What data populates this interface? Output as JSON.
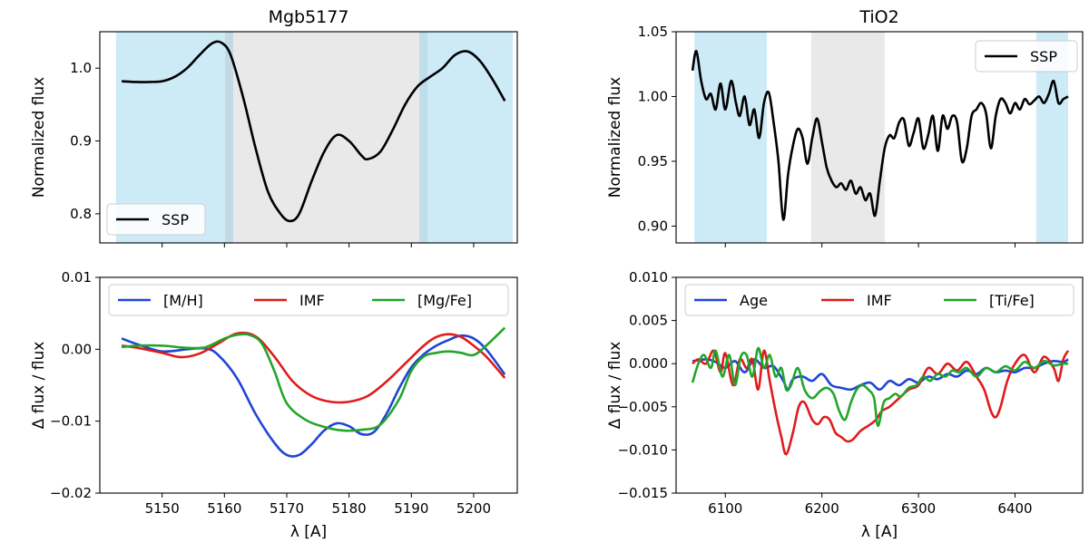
{
  "chart_data": [
    {
      "type": "line",
      "title": "Mgb5177",
      "xlabel": "",
      "ylabel": "Normalized flux",
      "xlim": [
        5140,
        5207
      ],
      "ylim": [
        0.76,
        1.05
      ],
      "xticks": [
        5150,
        5160,
        5170,
        5180,
        5190,
        5200
      ],
      "xtick_labels": [
        "",
        "",
        "",
        "",
        "",
        ""
      ],
      "yticks": [
        0.8,
        0.9,
        1.0
      ],
      "ytick_labels": [
        "0.8",
        "0.9",
        "1.0"
      ],
      "legend_position": "lower-left",
      "bands": [
        {
          "kind": "blue",
          "x0": 5142.6,
          "x1": 5161.4
        },
        {
          "kind": "grey",
          "x0": 5160.1,
          "x1": 5192.6
        },
        {
          "kind": "blue",
          "x0": 5191.3,
          "x1": 5206.3
        }
      ],
      "series": [
        {
          "name": "SSP",
          "color": "#000000",
          "x": [
            5143.5,
            5146,
            5148,
            5150,
            5152,
            5154,
            5156,
            5158,
            5159.5,
            5161,
            5163,
            5165,
            5167,
            5169,
            5170.5,
            5172,
            5174,
            5176,
            5178,
            5180,
            5182,
            5183,
            5185,
            5187,
            5189,
            5191,
            5193,
            5195,
            5197,
            5199,
            5201,
            5203,
            5205
          ],
          "y": [
            0.982,
            0.981,
            0.981,
            0.982,
            0.988,
            1.0,
            1.018,
            1.034,
            1.035,
            1.018,
            0.96,
            0.89,
            0.83,
            0.8,
            0.79,
            0.8,
            0.845,
            0.885,
            0.908,
            0.9,
            0.88,
            0.875,
            0.885,
            0.915,
            0.95,
            0.975,
            0.988,
            1.0,
            1.018,
            1.023,
            1.01,
            0.985,
            0.955
          ]
        }
      ]
    },
    {
      "type": "line",
      "title": "",
      "xlabel": "λ [A]",
      "ylabel": "Δ flux / flux",
      "xlim": [
        5140,
        5207
      ],
      "ylim": [
        -0.02,
        0.01
      ],
      "xticks": [
        5150,
        5160,
        5170,
        5180,
        5190,
        5200
      ],
      "xtick_labels": [
        "5150",
        "5160",
        "5170",
        "5180",
        "5190",
        "5200"
      ],
      "yticks": [
        -0.02,
        -0.01,
        0.0,
        0.01
      ],
      "ytick_labels": [
        "−0.02",
        "−0.01",
        "0.00",
        "0.01"
      ],
      "legend_position": "top",
      "series": [
        {
          "name": "[M/H]",
          "color": "#1f45d8",
          "x": [
            5143.5,
            5146,
            5150,
            5154,
            5157,
            5159,
            5162,
            5165,
            5168,
            5170,
            5172,
            5174,
            5176,
            5178,
            5180,
            5182,
            5184,
            5186,
            5188,
            5190,
            5192,
            5194,
            5196,
            5198,
            5200,
            5202,
            5205
          ],
          "y": [
            0.0015,
            0.0007,
            -0.0003,
            0.0,
            0.0001,
            -0.0008,
            -0.004,
            -0.009,
            -0.013,
            -0.0147,
            -0.0147,
            -0.0132,
            -0.0113,
            -0.0103,
            -0.0107,
            -0.0118,
            -0.0115,
            -0.009,
            -0.0055,
            -0.0025,
            -0.0007,
            0.0005,
            0.0013,
            0.0019,
            0.0015,
            0.0,
            -0.0035
          ]
        },
        {
          "name": "IMF",
          "color": "#e01b1b",
          "x": [
            5143.5,
            5146,
            5150,
            5153,
            5156,
            5159,
            5162,
            5165,
            5168,
            5171,
            5174,
            5177,
            5180,
            5183,
            5186,
            5189,
            5192,
            5194,
            5196,
            5198,
            5200,
            5202,
            5205
          ],
          "y": [
            0.0005,
            0.0002,
            -0.0005,
            -0.0011,
            -0.0006,
            0.0008,
            0.0022,
            0.0018,
            -0.001,
            -0.0045,
            -0.0065,
            -0.0073,
            -0.0073,
            -0.0065,
            -0.0045,
            -0.002,
            0.0005,
            0.0017,
            0.0021,
            0.0017,
            0.0005,
            -0.001,
            -0.004
          ]
        },
        {
          "name": "[Mg/Fe]",
          "color": "#22a52a",
          "x": [
            5143.5,
            5146,
            5150,
            5154,
            5157,
            5160,
            5162,
            5164,
            5166,
            5168,
            5170,
            5173,
            5176,
            5179,
            5182,
            5185,
            5188,
            5190,
            5192,
            5194,
            5196,
            5198,
            5200,
            5202,
            5205
          ],
          "y": [
            0.0003,
            0.0005,
            0.0005,
            0.0002,
            0.0003,
            0.0015,
            0.002,
            0.002,
            0.0008,
            -0.003,
            -0.0075,
            -0.0098,
            -0.0108,
            -0.0113,
            -0.0112,
            -0.0105,
            -0.007,
            -0.003,
            -0.001,
            -0.0005,
            -0.0003,
            -0.0005,
            -0.0008,
            0.0005,
            0.003
          ]
        }
      ]
    },
    {
      "type": "line",
      "title": "TiO2",
      "xlabel": "",
      "ylabel": "Normalized flux",
      "xlim": [
        6049,
        6470
      ],
      "ylim": [
        0.887,
        1.05
      ],
      "xticks": [
        6100,
        6200,
        6300,
        6400
      ],
      "xtick_labels": [
        "",
        "",
        "",
        ""
      ],
      "yticks": [
        0.9,
        0.95,
        1.0,
        1.05
      ],
      "ytick_labels": [
        "0.90",
        "0.95",
        "1.00",
        "1.05"
      ],
      "legend_position": "top-right",
      "bands": [
        {
          "kind": "blue",
          "x0": 6068,
          "x1": 6143
        },
        {
          "kind": "grey",
          "x0": 6189,
          "x1": 6265
        },
        {
          "kind": "blue",
          "x0": 6422,
          "x1": 6455
        }
      ],
      "series": [
        {
          "name": "SSP",
          "color": "#000000",
          "x": [
            6066,
            6070,
            6075,
            6080,
            6085,
            6090,
            6095,
            6100,
            6106,
            6111,
            6115,
            6120,
            6125,
            6130,
            6135,
            6140,
            6145,
            6150,
            6155,
            6160,
            6165,
            6170,
            6175,
            6180,
            6185,
            6190,
            6195,
            6200,
            6205,
            6210,
            6215,
            6220,
            6225,
            6230,
            6235,
            6240,
            6245,
            6250,
            6255,
            6260,
            6265,
            6270,
            6275,
            6280,
            6285,
            6290,
            6295,
            6300,
            6305,
            6310,
            6315,
            6320,
            6325,
            6330,
            6335,
            6340,
            6345,
            6350,
            6355,
            6360,
            6365,
            6370,
            6375,
            6380,
            6385,
            6390,
            6395,
            6400,
            6405,
            6410,
            6415,
            6420,
            6425,
            6430,
            6435,
            6440,
            6445,
            6450,
            6455
          ],
          "y": [
            1.02,
            1.035,
            1.012,
            0.998,
            1.002,
            0.99,
            1.01,
            0.99,
            1.012,
            0.995,
            0.985,
            1.0,
            0.978,
            0.99,
            0.968,
            0.995,
            1.003,
            0.98,
            0.95,
            0.905,
            0.94,
            0.962,
            0.975,
            0.968,
            0.948,
            0.968,
            0.983,
            0.965,
            0.945,
            0.935,
            0.93,
            0.933,
            0.928,
            0.935,
            0.925,
            0.93,
            0.92,
            0.925,
            0.908,
            0.935,
            0.96,
            0.97,
            0.968,
            0.98,
            0.982,
            0.962,
            0.972,
            0.983,
            0.96,
            0.97,
            0.985,
            0.958,
            0.985,
            0.975,
            0.985,
            0.98,
            0.95,
            0.96,
            0.985,
            0.99,
            0.995,
            0.987,
            0.96,
            0.985,
            0.998,
            0.995,
            0.987,
            0.995,
            0.99,
            0.998,
            0.994,
            0.997,
            1.0,
            0.995,
            1.002,
            1.012,
            0.995,
            0.998,
            1.0
          ]
        }
      ]
    },
    {
      "type": "line",
      "title": "",
      "xlabel": "λ [A]",
      "ylabel": "Δ flux / flux",
      "xlim": [
        6049,
        6470
      ],
      "ylim": [
        -0.015,
        0.01
      ],
      "xticks": [
        6100,
        6200,
        6300,
        6400
      ],
      "xtick_labels": [
        "6100",
        "6200",
        "6300",
        "6400"
      ],
      "yticks": [
        -0.015,
        -0.01,
        -0.005,
        0.0,
        0.005,
        0.01
      ],
      "ytick_labels": [
        "−0.015",
        "−0.010",
        "−0.005",
        "0.000",
        "0.005",
        "0.010"
      ],
      "legend_position": "top",
      "series": [
        {
          "name": "Age",
          "color": "#1f45d8",
          "x": [
            6066,
            6080,
            6090,
            6100,
            6110,
            6120,
            6130,
            6140,
            6150,
            6160,
            6165,
            6170,
            6180,
            6190,
            6200,
            6210,
            6220,
            6230,
            6240,
            6250,
            6260,
            6270,
            6280,
            6290,
            6300,
            6310,
            6320,
            6330,
            6340,
            6350,
            6360,
            6370,
            6380,
            6390,
            6400,
            6410,
            6420,
            6430,
            6440,
            6450,
            6455
          ],
          "y": [
            0.0003,
            0.0005,
            0.0002,
            -0.0005,
            0.0003,
            -0.001,
            0.0005,
            -0.0005,
            -0.0003,
            -0.002,
            -0.003,
            -0.0018,
            -0.0015,
            -0.002,
            -0.0012,
            -0.0025,
            -0.0028,
            -0.003,
            -0.0025,
            -0.0022,
            -0.003,
            -0.002,
            -0.0025,
            -0.0018,
            -0.0022,
            -0.0015,
            -0.0018,
            -0.0012,
            -0.0015,
            -0.0008,
            -0.0012,
            -0.0005,
            -0.001,
            -0.0008,
            -0.001,
            -0.0005,
            -0.0005,
            0.0,
            0.0003,
            0.0002,
            0.0005
          ]
        },
        {
          "name": "IMF",
          "color": "#e01b1b",
          "x": [
            6066,
            6072,
            6080,
            6088,
            6095,
            6100,
            6108,
            6115,
            6122,
            6128,
            6134,
            6140,
            6146,
            6152,
            6158,
            6163,
            6170,
            6176,
            6182,
            6190,
            6196,
            6202,
            6208,
            6214,
            6220,
            6226,
            6232,
            6240,
            6248,
            6256,
            6262,
            6270,
            6280,
            6290,
            6300,
            6310,
            6320,
            6330,
            6340,
            6350,
            6360,
            6368,
            6375,
            6380,
            6385,
            6392,
            6400,
            6410,
            6420,
            6430,
            6440,
            6445,
            6450,
            6455
          ],
          "y": [
            0.0,
            0.0005,
            0.0,
            0.0015,
            -0.001,
            0.0012,
            -0.0025,
            0.0005,
            -0.0005,
            0.0005,
            -0.003,
            0.0015,
            -0.002,
            -0.0055,
            -0.0085,
            -0.0105,
            -0.008,
            -0.005,
            -0.0045,
            -0.0065,
            -0.007,
            -0.0062,
            -0.0065,
            -0.008,
            -0.0085,
            -0.009,
            -0.0088,
            -0.0078,
            -0.0072,
            -0.0065,
            -0.0055,
            -0.005,
            -0.004,
            -0.003,
            -0.0025,
            -0.0005,
            -0.0012,
            0.0,
            -0.0008,
            0.0002,
            -0.0015,
            -0.003,
            -0.0055,
            -0.0062,
            -0.005,
            -0.002,
            0.0,
            0.001,
            -0.001,
            0.0008,
            -0.0005,
            -0.002,
            0.0005,
            0.0015
          ]
        },
        {
          "name": "[Ti/Fe]",
          "color": "#22a52a",
          "x": [
            6066,
            6072,
            6078,
            6085,
            6090,
            6097,
            6104,
            6110,
            6116,
            6122,
            6128,
            6134,
            6140,
            6146,
            6152,
            6158,
            6163,
            6168,
            6175,
            6182,
            6190,
            6198,
            6205,
            6212,
            6218,
            6224,
            6230,
            6236,
            6242,
            6248,
            6254,
            6258,
            6264,
            6270,
            6276,
            6282,
            6290,
            6298,
            6305,
            6312,
            6320,
            6328,
            6335,
            6342,
            6350,
            6360,
            6370,
            6380,
            6390,
            6400,
            6410,
            6420,
            6430,
            6440,
            6450,
            6455
          ],
          "y": [
            -0.0022,
            0.0,
            0.001,
            -0.0005,
            0.0015,
            -0.0015,
            0.001,
            -0.0025,
            0.0008,
            0.001,
            -0.0015,
            0.0018,
            -0.0005,
            0.001,
            -0.0015,
            -0.0005,
            -0.003,
            -0.0025,
            -0.0005,
            -0.003,
            -0.004,
            -0.0032,
            -0.0028,
            -0.0035,
            -0.0055,
            -0.0065,
            -0.0045,
            -0.003,
            -0.0025,
            -0.003,
            -0.004,
            -0.0072,
            -0.0045,
            -0.004,
            -0.0035,
            -0.0038,
            -0.0028,
            -0.0025,
            -0.0015,
            -0.002,
            -0.0012,
            -0.0015,
            -0.0008,
            -0.001,
            -0.0005,
            -0.0015,
            -0.0005,
            -0.001,
            -0.0003,
            -0.0008,
            0.0002,
            -0.0005,
            0.0003,
            -0.0002,
            0.0,
            0.0
          ]
        }
      ]
    }
  ]
}
